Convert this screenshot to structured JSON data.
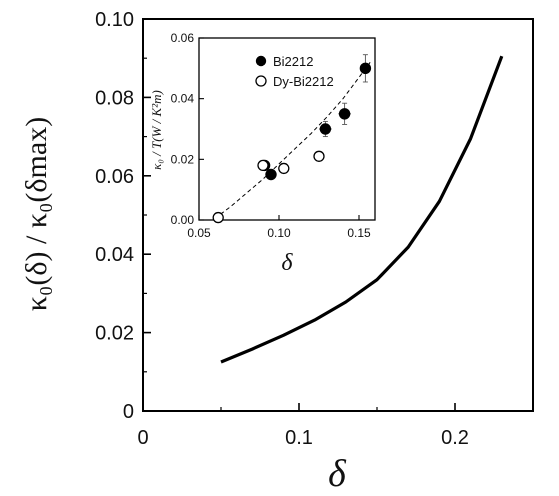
{
  "chart_data": [
    {
      "type": "line",
      "x": [
        0.05,
        0.07,
        0.09,
        0.11,
        0.13,
        0.15,
        0.17,
        0.19,
        0.21,
        0.23
      ],
      "series": [
        {
          "values": [
            0.0125,
            0.0158,
            0.0193,
            0.0232,
            0.0278,
            0.0335,
            0.0418,
            0.0535,
            0.0695,
            0.0905
          ]
        }
      ],
      "xlim": [
        0,
        0.25
      ],
      "ylim": [
        0,
        0.1
      ],
      "xticks": [
        "0",
        "0.1",
        "0.2"
      ],
      "yticks": [
        "0",
        "0.02",
        "0.04",
        "0.06",
        "0.08",
        "0.10"
      ],
      "xlabel": "δ",
      "ylabel": "κ₀(δ) / κ₀(δmax)",
      "style": {
        "line_color": "#000000"
      }
    },
    {
      "type": "scatter",
      "xlim": [
        0.05,
        0.16
      ],
      "ylim": [
        0,
        0.06
      ],
      "xticks": [
        "0.05",
        "0.10",
        "0.15"
      ],
      "yticks": [
        "0.00",
        "0.02",
        "0.04",
        "0.06"
      ],
      "xlabel": "δ",
      "ylabel": "κ₀ / T(W / K²m)",
      "legend": {
        "placement": "top-right"
      },
      "series": [
        {
          "name": "Bi2212",
          "marker": "filled-circle",
          "points": [
            {
              "x": 0.091,
              "y": 0.018,
              "xerr": 0.003,
              "yerr": 0.0012
            },
            {
              "x": 0.095,
              "y": 0.015,
              "xerr": 0.003,
              "yerr": 0.0012
            },
            {
              "x": 0.129,
              "y": 0.03,
              "xerr": 0.004,
              "yerr": 0.0025
            },
            {
              "x": 0.141,
              "y": 0.035,
              "xerr": 0.004,
              "yerr": 0.0035
            },
            {
              "x": 0.154,
              "y": 0.05,
              "xerr": 0.003,
              "yerr": 0.0045
            }
          ]
        },
        {
          "name": "Dy-Bi2212",
          "marker": "open-circle",
          "points": [
            {
              "x": 0.062,
              "y": 0.0008,
              "xerr": 0.002,
              "yerr": 0.0005
            },
            {
              "x": 0.09,
              "y": 0.018,
              "xerr": 0.003,
              "yerr": 0.0012
            },
            {
              "x": 0.103,
              "y": 0.017,
              "xerr": 0.003,
              "yerr": 0.0012
            },
            {
              "x": 0.125,
              "y": 0.021,
              "xerr": 0.003,
              "yerr": 0.0012
            }
          ]
        }
      ],
      "fit": {
        "style": "dashed",
        "x": [
          0.06,
          0.07,
          0.08,
          0.09,
          0.1,
          0.11,
          0.12,
          0.13,
          0.14,
          0.15,
          0.157
        ],
        "y": [
          0.0005,
          0.0045,
          0.009,
          0.0135,
          0.0185,
          0.0235,
          0.0285,
          0.034,
          0.04,
          0.047,
          0.052
        ]
      }
    }
  ]
}
